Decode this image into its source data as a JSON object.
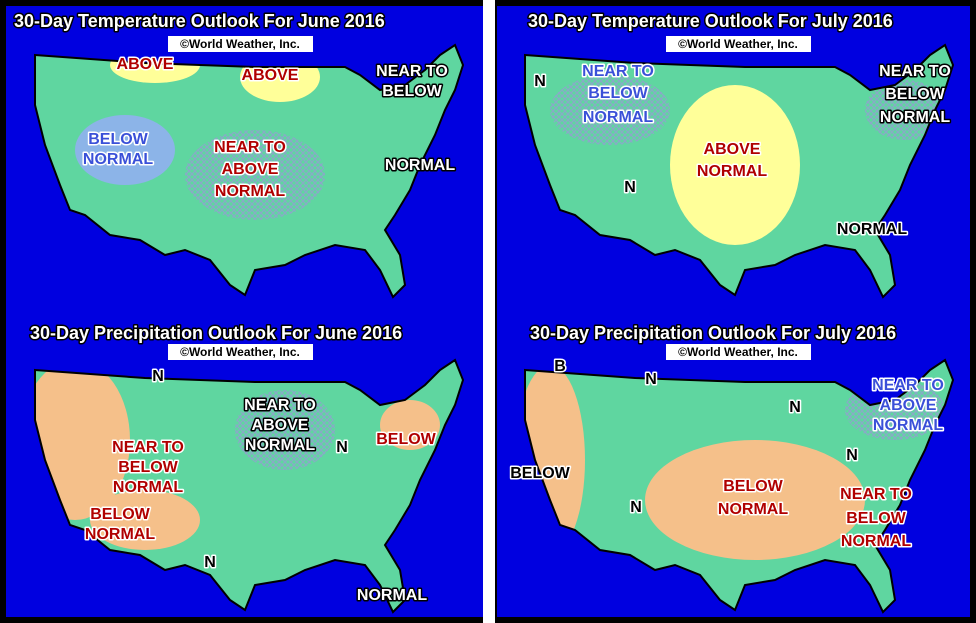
{
  "panels": [
    {
      "title": "30-Day Temperature Outlook For June 2016",
      "credit": "©World Weather, Inc.",
      "labels": [
        "ABOVE",
        "ABOVE",
        "NEAR TO",
        "BELOW",
        "BELOW",
        "NORMAL",
        "NEAR TO",
        "ABOVE",
        "NORMAL",
        "NORMAL"
      ]
    },
    {
      "title": "30-Day Temperature Outlook For July 2016",
      "credit": "©World Weather, Inc.",
      "labels": [
        "NEAR TO",
        "BELOW",
        "NORMAL",
        "N",
        "NEAR TO",
        "BELOW",
        "NORMAL",
        "ABOVE",
        "NORMAL",
        "N",
        "NORMAL"
      ]
    },
    {
      "title": "30-Day Precipitation Outlook For June 2016",
      "credit": "©World Weather, Inc.",
      "labels": [
        "N",
        "NEAR TO",
        "ABOVE",
        "NORMAL",
        "N",
        "BELOW",
        "NEAR TO",
        "BELOW",
        "NORMAL",
        "BELOW",
        "NORMAL",
        "N",
        "NORMAL"
      ]
    },
    {
      "title": "30-Day Precipitation Outlook For July 2016",
      "credit": "©World Weather, Inc.",
      "labels": [
        "B",
        "N",
        "N",
        "NEAR TO",
        "ABOVE",
        "NORMAL",
        "N",
        "BELOW",
        "BELOW",
        "NORMAL",
        "NEAR TO",
        "BELOW",
        "NORMAL",
        "N"
      ]
    }
  ]
}
